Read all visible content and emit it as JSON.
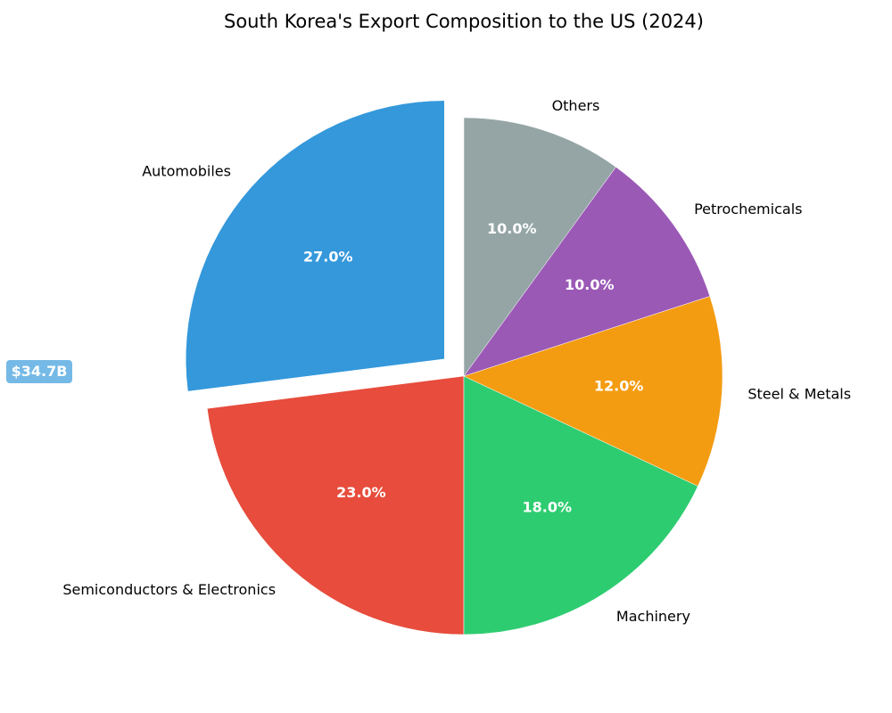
{
  "chart_data": {
    "type": "pie",
    "title": "South Korea's Export Composition to the US (2024)",
    "categories": [
      "Automobiles",
      "Semiconductors & Electronics",
      "Machinery",
      "Steel & Metals",
      "Petrochemicals",
      "Others"
    ],
    "values": [
      27.0,
      23.0,
      18.0,
      12.0,
      10.0,
      10.0
    ],
    "value_labels": [
      "27.0%",
      "23.0%",
      "18.0%",
      "12.0%",
      "10.0%",
      "10.0%"
    ],
    "colors": [
      "#3498db",
      "#e74c3c",
      "#2ecc71",
      "#f39c12",
      "#9b59b6",
      "#95a5a6"
    ],
    "exploded": [
      "Automobiles"
    ],
    "start_angle_deg": 90,
    "direction": "counterclockwise",
    "annotation": {
      "text": "$34.7B",
      "color": "#5dade2"
    }
  }
}
